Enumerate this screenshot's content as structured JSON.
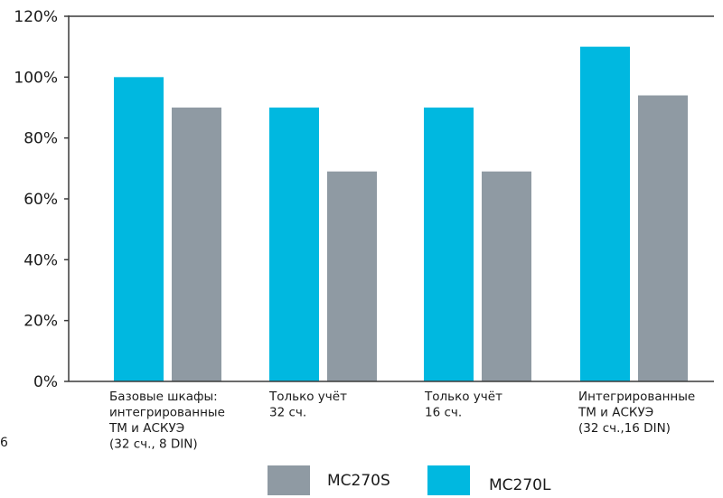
{
  "page_number": "6",
  "chart_data": {
    "type": "bar",
    "title": "",
    "xlabel": "",
    "ylabel": "",
    "ylim": [
      0,
      120
    ],
    "yticks": [
      "0%",
      "20%",
      "40%",
      "60%",
      "80%",
      "100%",
      "120%"
    ],
    "grid": false,
    "legend_position": "bottom",
    "categories": [
      [
        "Базовые шкафы:",
        "интегрированные",
        "ТМ и АСКУЭ",
        "(32 сч., 8 DIN)"
      ],
      [
        "Только учёт",
        "32 сч."
      ],
      [
        "Только учёт",
        "16 сч."
      ],
      [
        "Интегрированные",
        "ТМ и АСКУЭ",
        "(32 сч.,16 DIN)"
      ]
    ],
    "series": [
      {
        "name": "MC270L",
        "color": "#00b8e0",
        "values": [
          100,
          90,
          90,
          110
        ]
      },
      {
        "name": "MC270S",
        "color": "#8f9aa3",
        "values": [
          90,
          69,
          69,
          94
        ]
      }
    ],
    "legend": [
      {
        "name": "MC270S",
        "color": "#8f9aa3"
      },
      {
        "name": "MC270L",
        "color": "#00b8e0"
      }
    ]
  }
}
